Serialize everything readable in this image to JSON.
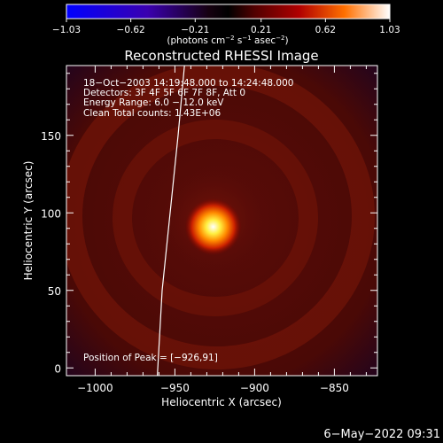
{
  "chart_data": {
    "type": "heatmap",
    "title": "Reconstructed RHESSI Image",
    "xlabel": "Heliocentric X (arcsec)",
    "ylabel": "Heliocentric Y (arcsec)",
    "xlim": [
      -1018,
      -823
    ],
    "ylim": [
      -5,
      195
    ],
    "x_ticks": [
      {
        "value": -1000,
        "label": "−1000"
      },
      {
        "value": -950,
        "label": "−950"
      },
      {
        "value": -900,
        "label": "−900"
      },
      {
        "value": -850,
        "label": "−850"
      }
    ],
    "y_ticks": [
      {
        "value": 0,
        "label": "0"
      },
      {
        "value": 50,
        "label": "50"
      },
      {
        "value": 100,
        "label": "100"
      },
      {
        "value": 150,
        "label": "150"
      }
    ],
    "colorbar": {
      "range": [
        -1.03,
        1.03
      ],
      "ticks": [
        {
          "value": -1.03,
          "label": "−1.03"
        },
        {
          "value": -0.62,
          "label": "−0.62"
        },
        {
          "value": -0.21,
          "label": "−0.21"
        },
        {
          "value": 0.21,
          "label": "0.21"
        },
        {
          "value": 0.62,
          "label": "0.62"
        },
        {
          "value": 1.03,
          "label": "1.03"
        }
      ],
      "unit_label": [
        "(photons cm",
        "−2",
        " s",
        "−1",
        " asec",
        "−2",
        ")"
      ]
    },
    "annotations": [
      "18−Oct−2003 14:19:48.000 to 14:24:48.000",
      "Detectors: 3F 4F 5F 6F 7F 8F, Att 0",
      "Energy Range: 6.0 − 12.0 keV",
      "Clean    Total counts: 1.43E+06"
    ],
    "peak_label": "Position of Peak = [−926,91]",
    "peak": {
      "x": -926,
      "y": 91
    },
    "limb": [
      {
        "x": -961,
        "y": -5
      },
      {
        "x": -958,
        "y": 50
      },
      {
        "x": -953,
        "y": 100
      },
      {
        "x": -948,
        "y": 150
      },
      {
        "x": -944,
        "y": 195
      }
    ],
    "timestamp": "6−May−2022 09:31"
  },
  "colors": {
    "background": "#000000",
    "axes": "#ffffff",
    "limb": "#ffffff"
  }
}
